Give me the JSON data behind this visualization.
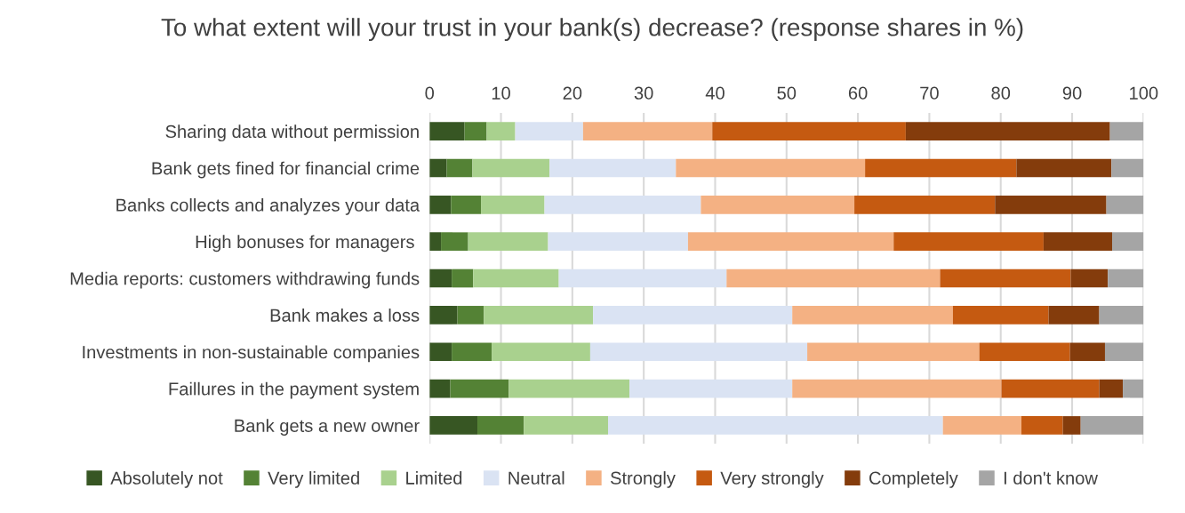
{
  "chart_data": {
    "type": "bar",
    "orientation": "horizontal",
    "stacked": true,
    "title": "To what extent will your trust in your bank(s) decrease? (response shares in %)",
    "categories": [
      "Sharing data without permission",
      "Bank gets fined for financial crime",
      "Banks collects and analyzes your data",
      "High bonuses for managers ",
      "Media reports: customers withdrawing funds",
      "Bank makes a loss",
      "Investments in non-sustainable companies",
      "Faillures in the payment system",
      "Bank gets a new owner"
    ],
    "series": [
      {
        "name": "Absolutely not",
        "color": "#375623",
        "values": [
          4.9,
          2.4,
          3.0,
          1.6,
          3.1,
          3.9,
          3.1,
          2.9,
          6.7
        ]
      },
      {
        "name": "Very limited",
        "color": "#548235",
        "values": [
          3.1,
          3.6,
          4.2,
          3.8,
          3.0,
          3.7,
          5.6,
          8.2,
          6.5
        ]
      },
      {
        "name": "Limited",
        "color": "#a9d18e",
        "values": [
          4.0,
          10.8,
          8.9,
          11.2,
          12.0,
          15.3,
          13.8,
          16.9,
          11.8
        ]
      },
      {
        "name": "Neutral",
        "color": "#dae3f3",
        "values": [
          9.5,
          17.7,
          21.9,
          19.6,
          23.5,
          27.9,
          30.4,
          22.8,
          46.9
        ]
      },
      {
        "name": "Strongly",
        "color": "#f4b183",
        "values": [
          18.1,
          26.5,
          21.5,
          28.8,
          29.9,
          22.5,
          24.1,
          29.3,
          11.0
        ]
      },
      {
        "name": "Very strongly",
        "color": "#c55a11",
        "values": [
          27.1,
          21.2,
          19.7,
          21.0,
          18.3,
          13.4,
          12.7,
          13.7,
          5.8
        ]
      },
      {
        "name": "Completely",
        "color": "#843c0c",
        "values": [
          28.6,
          13.3,
          15.6,
          9.6,
          5.2,
          7.1,
          4.9,
          3.3,
          2.5
        ]
      },
      {
        "name": "I don't know",
        "color": "#a5a5a5",
        "values": [
          4.7,
          4.5,
          5.2,
          4.4,
          5.0,
          6.2,
          5.4,
          2.9,
          8.8
        ]
      }
    ],
    "xlim": [
      0,
      100
    ],
    "xticks": [
      0,
      10,
      20,
      30,
      40,
      50,
      60,
      70,
      80,
      90,
      100
    ],
    "grid": "x",
    "legend": "bottom"
  }
}
